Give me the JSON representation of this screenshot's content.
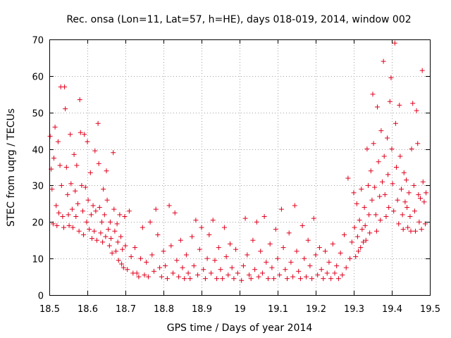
{
  "chart_data": {
    "type": "scatter",
    "title": "Rec. onsa (Lon=11, Lat=57, h=HE), days 018-019, 2014, window 002",
    "xlabel": "GPS time / Days of year 2014",
    "ylabel": "STEC from uqrg / TECUs",
    "xlim": [
      18.5,
      19.5
    ],
    "ylim": [
      0,
      70
    ],
    "xticks": [
      "18.5",
      "18.6",
      "18.7",
      "18.8",
      "18.9",
      "19",
      "19.1",
      "19.2",
      "19.3",
      "19.4",
      "19.5"
    ],
    "yticks": [
      "0",
      "10",
      "20",
      "30",
      "40",
      "50",
      "60",
      "70"
    ],
    "grid": true,
    "marker": "+",
    "color": "#e0001c",
    "series": [
      {
        "name": "STEC",
        "points": [
          [
            18.502,
            43.5
          ],
          [
            18.505,
            34.5
          ],
          [
            18.507,
            29.0
          ],
          [
            18.51,
            19.5
          ],
          [
            18.512,
            37.5
          ],
          [
            18.515,
            46.0
          ],
          [
            18.518,
            24.5
          ],
          [
            18.52,
            19.0
          ],
          [
            18.523,
            42.0
          ],
          [
            18.525,
            22.5
          ],
          [
            18.528,
            35.5
          ],
          [
            18.53,
            57.0
          ],
          [
            18.532,
            30.0
          ],
          [
            18.535,
            21.5
          ],
          [
            18.538,
            18.5
          ],
          [
            18.54,
            57.0
          ],
          [
            18.542,
            51.0
          ],
          [
            18.545,
            35.0
          ],
          [
            18.548,
            27.5
          ],
          [
            18.55,
            22.0
          ],
          [
            18.552,
            19.0
          ],
          [
            18.555,
            44.0
          ],
          [
            18.557,
            30.5
          ],
          [
            18.56,
            23.5
          ],
          [
            18.562,
            18.5
          ],
          [
            18.565,
            38.5
          ],
          [
            18.568,
            28.5
          ],
          [
            18.57,
            21.5
          ],
          [
            18.572,
            35.5
          ],
          [
            18.575,
            25.0
          ],
          [
            18.578,
            17.5
          ],
          [
            18.58,
            53.5
          ],
          [
            18.582,
            44.5
          ],
          [
            18.585,
            30.0
          ],
          [
            18.588,
            23.0
          ],
          [
            18.59,
            16.5
          ],
          [
            18.592,
            44.0
          ],
          [
            18.595,
            29.5
          ],
          [
            18.598,
            20.0
          ],
          [
            18.6,
            42.0
          ],
          [
            18.602,
            26.0
          ],
          [
            18.605,
            18.0
          ],
          [
            18.608,
            33.5
          ],
          [
            18.61,
            22.0
          ],
          [
            18.612,
            15.5
          ],
          [
            18.615,
            24.5
          ],
          [
            18.618,
            17.5
          ],
          [
            18.62,
            39.5
          ],
          [
            18.622,
            23.0
          ],
          [
            18.625,
            15.0
          ],
          [
            18.628,
            47.0
          ],
          [
            18.63,
            36.0
          ],
          [
            18.632,
            24.0
          ],
          [
            18.635,
            17.0
          ],
          [
            18.638,
            20.0
          ],
          [
            18.64,
            14.5
          ],
          [
            18.642,
            29.0
          ],
          [
            18.645,
            22.0
          ],
          [
            18.648,
            16.0
          ],
          [
            18.65,
            34.0
          ],
          [
            18.652,
            26.0
          ],
          [
            18.655,
            18.0
          ],
          [
            18.658,
            13.5
          ],
          [
            18.66,
            20.0
          ],
          [
            18.662,
            15.5
          ],
          [
            18.665,
            11.5
          ],
          [
            18.668,
            39.0
          ],
          [
            18.67,
            23.5
          ],
          [
            18.672,
            17.5
          ],
          [
            18.675,
            12.0
          ],
          [
            18.678,
            19.5
          ],
          [
            18.68,
            14.5
          ],
          [
            18.682,
            9.5
          ],
          [
            18.685,
            22.0
          ],
          [
            18.688,
            16.0
          ],
          [
            18.69,
            8.5
          ],
          [
            18.692,
            12.5
          ],
          [
            18.695,
            7.5
          ],
          [
            18.698,
            21.5
          ],
          [
            18.7,
            13.5
          ],
          [
            18.705,
            7.0
          ],
          [
            18.71,
            23.0
          ],
          [
            18.715,
            10.5
          ],
          [
            18.72,
            6.0
          ],
          [
            18.725,
            13.0
          ],
          [
            18.73,
            6.0
          ],
          [
            18.735,
            5.0
          ],
          [
            18.74,
            10.0
          ],
          [
            18.745,
            18.5
          ],
          [
            18.75,
            5.5
          ],
          [
            18.755,
            9.0
          ],
          [
            18.76,
            5.0
          ],
          [
            18.765,
            20.0
          ],
          [
            18.77,
            11.0
          ],
          [
            18.775,
            6.5
          ],
          [
            18.78,
            23.5
          ],
          [
            18.785,
            16.5
          ],
          [
            18.79,
            7.5
          ],
          [
            18.795,
            5.0
          ],
          [
            18.8,
            12.0
          ],
          [
            18.805,
            8.0
          ],
          [
            18.81,
            4.5
          ],
          [
            18.815,
            24.5
          ],
          [
            18.82,
            13.5
          ],
          [
            18.825,
            6.0
          ],
          [
            18.83,
            22.5
          ],
          [
            18.835,
            9.5
          ],
          [
            18.84,
            5.0
          ],
          [
            18.845,
            15.0
          ],
          [
            18.85,
            7.5
          ],
          [
            18.855,
            4.5
          ],
          [
            18.86,
            11.0
          ],
          [
            18.865,
            6.0
          ],
          [
            18.87,
            4.5
          ],
          [
            18.875,
            16.0
          ],
          [
            18.88,
            8.0
          ],
          [
            18.885,
            20.5
          ],
          [
            18.89,
            5.5
          ],
          [
            18.895,
            12.5
          ],
          [
            18.9,
            18.5
          ],
          [
            18.905,
            7.0
          ],
          [
            18.91,
            4.5
          ],
          [
            18.915,
            10.0
          ],
          [
            18.92,
            16.5
          ],
          [
            18.925,
            6.0
          ],
          [
            18.93,
            20.5
          ],
          [
            18.935,
            9.5
          ],
          [
            18.94,
            4.5
          ],
          [
            18.945,
            13.0
          ],
          [
            18.95,
            7.0
          ],
          [
            18.955,
            4.5
          ],
          [
            18.96,
            18.5
          ],
          [
            18.965,
            10.5
          ],
          [
            18.97,
            5.5
          ],
          [
            18.975,
            14.0
          ],
          [
            18.98,
            7.5
          ],
          [
            18.985,
            4.5
          ],
          [
            18.99,
            12.5
          ],
          [
            18.995,
            6.0
          ],
          [
            19.005,
            4.0
          ],
          [
            19.01,
            8.0
          ],
          [
            19.015,
            21.0
          ],
          [
            19.02,
            11.0
          ],
          [
            19.025,
            5.5
          ],
          [
            19.03,
            4.5
          ],
          [
            19.035,
            15.0
          ],
          [
            19.04,
            7.0
          ],
          [
            19.045,
            20.0
          ],
          [
            19.05,
            5.0
          ],
          [
            19.055,
            12.0
          ],
          [
            19.06,
            6.0
          ],
          [
            19.065,
            21.5
          ],
          [
            19.07,
            9.0
          ],
          [
            19.075,
            4.5
          ],
          [
            19.08,
            14.0
          ],
          [
            19.085,
            7.5
          ],
          [
            19.09,
            4.5
          ],
          [
            19.095,
            18.0
          ],
          [
            19.1,
            10.0
          ],
          [
            19.105,
            5.5
          ],
          [
            19.11,
            23.5
          ],
          [
            19.115,
            13.0
          ],
          [
            19.12,
            7.0
          ],
          [
            19.125,
            4.5
          ],
          [
            19.13,
            17.0
          ],
          [
            19.135,
            9.0
          ],
          [
            19.14,
            5.0
          ],
          [
            19.145,
            24.5
          ],
          [
            19.15,
            12.0
          ],
          [
            19.155,
            6.5
          ],
          [
            19.16,
            4.5
          ],
          [
            19.165,
            19.0
          ],
          [
            19.17,
            10.0
          ],
          [
            19.175,
            5.0
          ],
          [
            19.18,
            15.0
          ],
          [
            19.185,
            8.0
          ],
          [
            19.19,
            4.5
          ],
          [
            19.195,
            21.0
          ],
          [
            19.2,
            11.0
          ],
          [
            19.205,
            5.5
          ],
          [
            19.21,
            13.0
          ],
          [
            19.215,
            7.0
          ],
          [
            19.22,
            4.5
          ],
          [
            19.225,
            12.0
          ],
          [
            19.23,
            6.0
          ],
          [
            19.235,
            9.0
          ],
          [
            19.24,
            4.5
          ],
          [
            19.245,
            14.0
          ],
          [
            19.25,
            6.0
          ],
          [
            19.255,
            8.0
          ],
          [
            19.26,
            4.5
          ],
          [
            19.265,
            11.5
          ],
          [
            19.27,
            5.5
          ],
          [
            19.275,
            16.5
          ],
          [
            19.28,
            7.5
          ],
          [
            19.285,
            32.0
          ],
          [
            19.29,
            10.0
          ],
          [
            19.295,
            14.5
          ],
          [
            19.3,
            28.0
          ],
          [
            19.302,
            18.5
          ],
          [
            19.305,
            10.5
          ],
          [
            19.308,
            25.0
          ],
          [
            19.31,
            16.0
          ],
          [
            19.312,
            12.0
          ],
          [
            19.315,
            20.5
          ],
          [
            19.318,
            13.0
          ],
          [
            19.32,
            29.0
          ],
          [
            19.322,
            18.0
          ],
          [
            19.325,
            14.5
          ],
          [
            19.328,
            24.0
          ],
          [
            19.33,
            19.0
          ],
          [
            19.332,
            15.0
          ],
          [
            19.335,
            40.0
          ],
          [
            19.338,
            30.0
          ],
          [
            19.34,
            22.0
          ],
          [
            19.342,
            17.0
          ],
          [
            19.345,
            34.0
          ],
          [
            19.348,
            26.0
          ],
          [
            19.35,
            55.0
          ],
          [
            19.352,
            41.5
          ],
          [
            19.355,
            29.5
          ],
          [
            19.358,
            22.0
          ],
          [
            19.36,
            17.5
          ],
          [
            19.362,
            51.5
          ],
          [
            19.365,
            36.5
          ],
          [
            19.368,
            27.0
          ],
          [
            19.37,
            20.5
          ],
          [
            19.372,
            45.0
          ],
          [
            19.375,
            31.0
          ],
          [
            19.378,
            64.0
          ],
          [
            19.38,
            38.0
          ],
          [
            19.382,
            27.5
          ],
          [
            19.385,
            21.5
          ],
          [
            19.388,
            43.0
          ],
          [
            19.39,
            33.0
          ],
          [
            19.392,
            24.0
          ],
          [
            19.395,
            53.0
          ],
          [
            19.398,
            59.5
          ],
          [
            19.4,
            40.0
          ],
          [
            19.402,
            30.5
          ],
          [
            19.405,
            23.0
          ],
          [
            19.408,
            69.0
          ],
          [
            19.41,
            47.0
          ],
          [
            19.412,
            35.0
          ],
          [
            19.415,
            26.0
          ],
          [
            19.418,
            19.5
          ],
          [
            19.42,
            52.0
          ],
          [
            19.422,
            38.0
          ],
          [
            19.425,
            29.0
          ],
          [
            19.428,
            22.0
          ],
          [
            19.43,
            18.0
          ],
          [
            19.432,
            33.5
          ],
          [
            19.435,
            25.5
          ],
          [
            19.438,
            31.5
          ],
          [
            19.44,
            24.0
          ],
          [
            19.442,
            18.5
          ],
          [
            19.445,
            28.0
          ],
          [
            19.448,
            21.5
          ],
          [
            19.45,
            17.5
          ],
          [
            19.452,
            40.0
          ],
          [
            19.455,
            52.5
          ],
          [
            19.458,
            30.0
          ],
          [
            19.46,
            23.0
          ],
          [
            19.462,
            17.5
          ],
          [
            19.465,
            50.5
          ],
          [
            19.468,
            41.5
          ],
          [
            19.47,
            27.5
          ],
          [
            19.472,
            20.0
          ],
          [
            19.475,
            26.5
          ],
          [
            19.478,
            18.0
          ],
          [
            19.48,
            61.5
          ],
          [
            19.482,
            31.0
          ],
          [
            19.485,
            25.5
          ],
          [
            19.488,
            19.5
          ],
          [
            19.49,
            28.0
          ]
        ]
      }
    ]
  }
}
